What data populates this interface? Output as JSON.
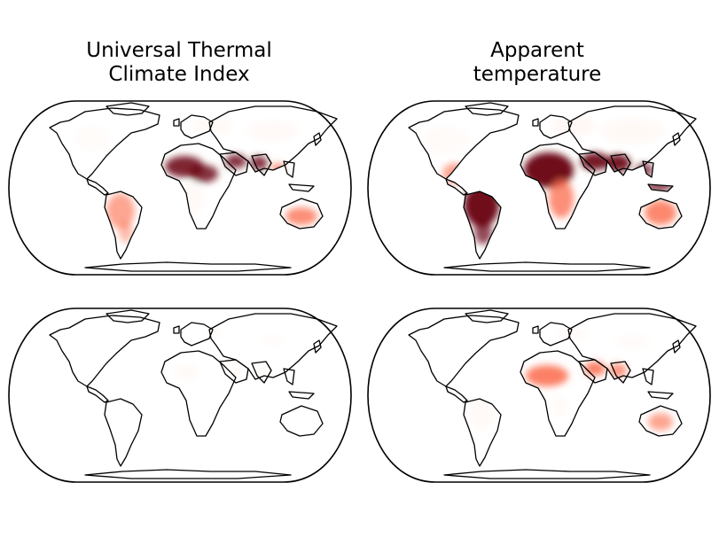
{
  "columns": [
    {
      "title": "Universal Thermal\nClimate Index"
    },
    {
      "title": "Apparent\ntemperature"
    }
  ],
  "colormap": {
    "name": "Reds",
    "low": "#fff5f0",
    "mid": "#fb6a4a",
    "high": "#67000d"
  },
  "panels": [
    {
      "id": "top-left",
      "column": "Universal Thermal Climate Index",
      "row": 1,
      "intensity": "moderate"
    },
    {
      "id": "top-right",
      "column": "Apparent temperature",
      "row": 1,
      "intensity": "high"
    },
    {
      "id": "bottom-left",
      "column": "Universal Thermal Climate Index",
      "row": 2,
      "intensity": "very-low"
    },
    {
      "id": "bottom-right",
      "column": "Apparent temperature",
      "row": 2,
      "intensity": "low"
    }
  ]
}
